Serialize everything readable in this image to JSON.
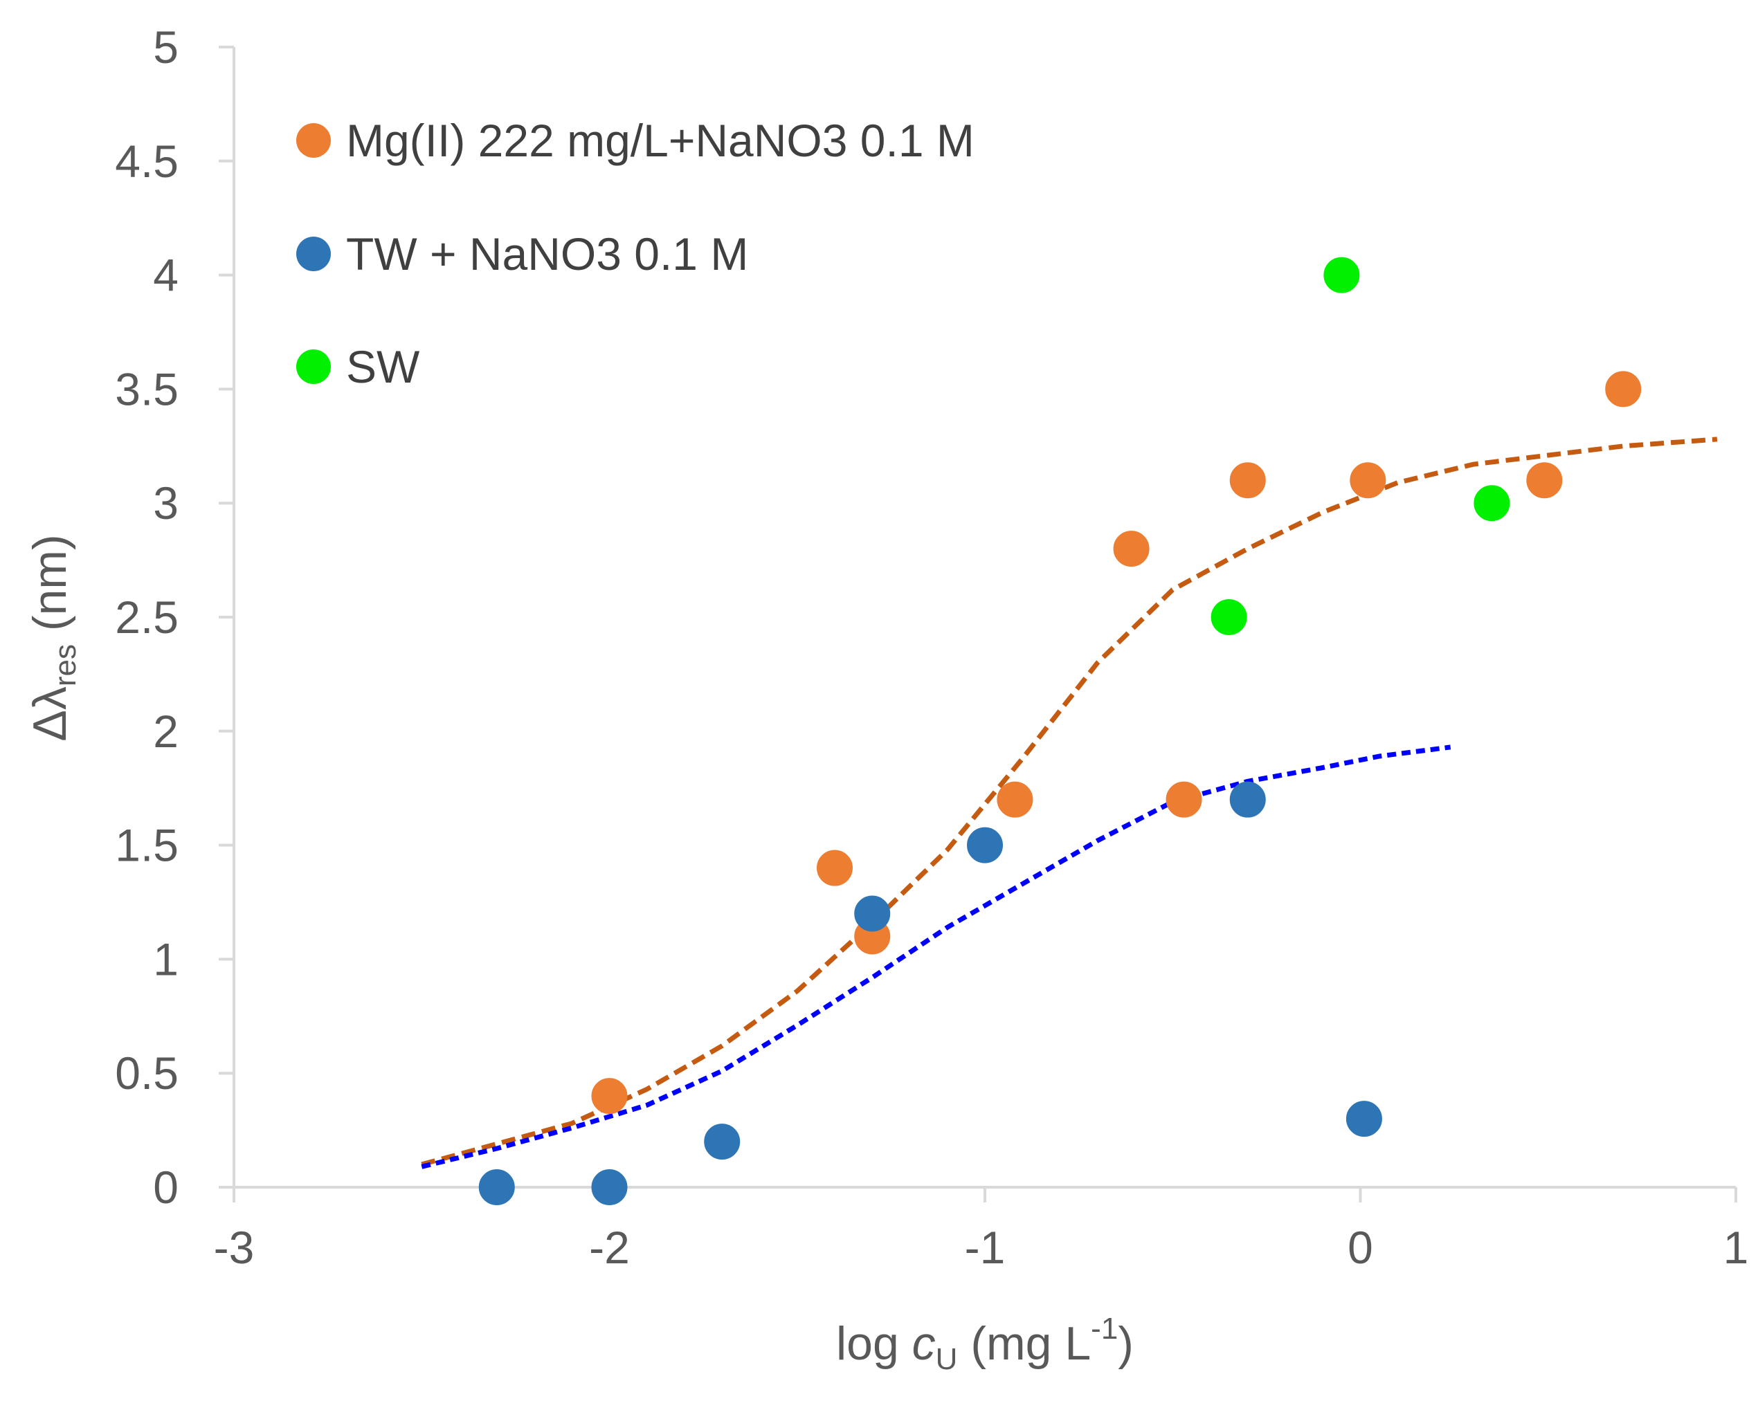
{
  "chart_data": {
    "type": "scatter",
    "xlabel": {
      "prefix": "log ",
      "var": "c",
      "sub": "U",
      "mid": " (mg L",
      "sup": "-1",
      "suffix": ")"
    },
    "ylabel": {
      "main": "Δλ",
      "sub": "res",
      "suffix": " (nm)"
    },
    "xlim": [
      -3,
      1
    ],
    "ylim": [
      0,
      5
    ],
    "x_ticks": [
      -3,
      -2,
      -1,
      0,
      1
    ],
    "y_ticks": [
      0,
      0.5,
      1,
      1.5,
      2,
      2.5,
      3,
      3.5,
      4,
      4.5,
      5
    ],
    "x_tick_labels": [
      "-3",
      "-2",
      "-1",
      "0",
      "1"
    ],
    "y_tick_labels": [
      "0",
      "0.5",
      "1",
      "1.5",
      "2",
      "2.5",
      "3",
      "3.5",
      "4",
      "4.5",
      "5"
    ],
    "grid": false,
    "legend_position": "top-left",
    "series": [
      {
        "name": "Mg(II) 222 mg/L+NaNO3 0.1 M",
        "color": "#ED7D31",
        "x": [
          -2.0,
          -1.4,
          -1.3,
          -0.92,
          -0.61,
          -0.47,
          -0.3,
          0.02,
          0.49,
          0.7
        ],
        "y": [
          0.4,
          1.4,
          1.1,
          1.7,
          2.8,
          1.7,
          3.1,
          3.1,
          3.1,
          3.5
        ]
      },
      {
        "name": "TW + NaNO3 0.1 M",
        "color": "#2E75B6",
        "x": [
          -2.3,
          -2.0,
          -1.7,
          -1.3,
          -1.0,
          -0.3,
          0.01
        ],
        "y": [
          0.0,
          0.0,
          0.2,
          1.2,
          1.5,
          1.7,
          0.3
        ]
      },
      {
        "name": "SW",
        "color": "#00F000",
        "x": [
          -0.35,
          -0.05,
          0.35
        ],
        "y": [
          2.5,
          4.0,
          3.0
        ]
      }
    ],
    "fits": [
      {
        "color": "#C55A11",
        "x": [
          -2.5,
          -2.3,
          -2.1,
          -1.9,
          -1.7,
          -1.5,
          -1.3,
          -1.1,
          -0.9,
          -0.7,
          -0.5,
          -0.3,
          -0.1,
          0.1,
          0.3,
          0.5,
          0.7,
          0.95
        ],
        "y": [
          0.1,
          0.19,
          0.28,
          0.43,
          0.62,
          0.86,
          1.16,
          1.48,
          1.88,
          2.3,
          2.62,
          2.8,
          2.96,
          3.09,
          3.17,
          3.21,
          3.25,
          3.28
        ]
      },
      {
        "color": "#0000FF",
        "x": [
          -2.5,
          -2.3,
          -2.1,
          -1.9,
          -1.7,
          -1.5,
          -1.3,
          -1.1,
          -0.9,
          -0.7,
          -0.5,
          -0.3,
          -0.1,
          0.05,
          0.24
        ],
        "y": [
          0.09,
          0.17,
          0.26,
          0.36,
          0.51,
          0.71,
          0.92,
          1.14,
          1.33,
          1.52,
          1.69,
          1.78,
          1.84,
          1.89,
          1.93
        ]
      }
    ]
  }
}
